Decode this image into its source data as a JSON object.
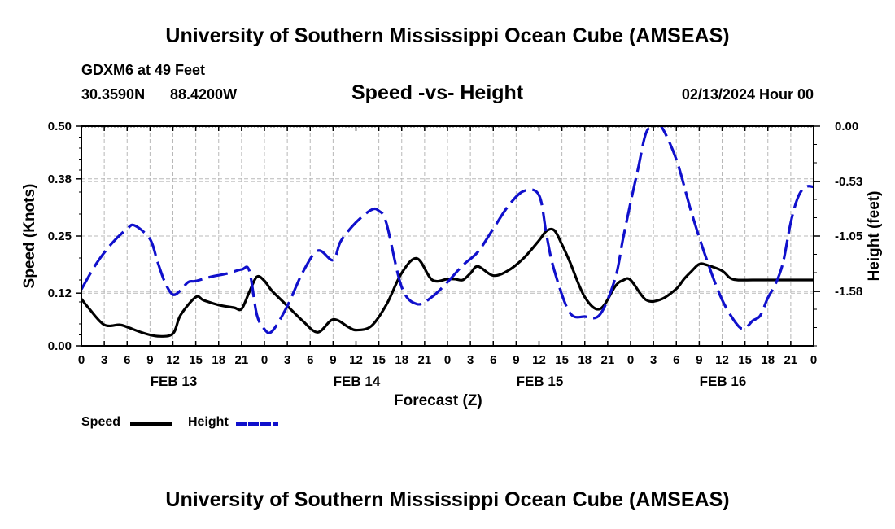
{
  "title_top": "University of Southern Mississippi Ocean Cube (AMSEAS)",
  "title_bottom": "University of Southern Mississippi Ocean Cube (AMSEAS)",
  "station": {
    "name_depth": "GDXM6 at 49 Feet",
    "lat": "30.3590N",
    "lon": "88.4200W"
  },
  "datetime": "02/13/2024 Hour 00",
  "chart_data": {
    "type": "line",
    "title": "Speed -vs- Height",
    "xlabel": "Forecast (Z)",
    "ylabel_left": "Speed (Knots)",
    "ylabel_right": "Height (feet)",
    "x_hours_range": [
      0,
      96
    ],
    "x_tick_labels": [
      "0",
      "3",
      "6",
      "9",
      "12",
      "15",
      "18",
      "21",
      "0",
      "3",
      "6",
      "9",
      "12",
      "15",
      "18",
      "21",
      "0",
      "3",
      "6",
      "9",
      "12",
      "15",
      "18",
      "21",
      "0",
      "3",
      "6",
      "9",
      "12",
      "15",
      "18",
      "21",
      "0"
    ],
    "day_labels": [
      {
        "label": "FEB 13",
        "center_hour": 12
      },
      {
        "label": "FEB 14",
        "center_hour": 36
      },
      {
        "label": "FEB 15",
        "center_hour": 60
      },
      {
        "label": "FEB 16",
        "center_hour": 84
      }
    ],
    "left_axis": {
      "range": [
        0.0,
        0.5
      ],
      "ticks": [
        "0.00",
        "0.12",
        "0.25",
        "0.38",
        "0.50"
      ]
    },
    "right_axis": {
      "range": [
        -2.1,
        0.0
      ],
      "ticks": [
        "0.00",
        "-0.53",
        "-1.05",
        "-1.58"
      ],
      "tick_values": [
        0.0,
        -0.53,
        -1.05,
        -1.58
      ]
    },
    "grid": true,
    "series": [
      {
        "name": "Speed",
        "axis": "left",
        "color": "#000000",
        "dash": "solid",
        "x": [
          0,
          1,
          3,
          5,
          6,
          8,
          10,
          12,
          13,
          15,
          16,
          18,
          20,
          21,
          22,
          23,
          24,
          25,
          27,
          29,
          31,
          33,
          35,
          36,
          38,
          40,
          42,
          44,
          46,
          48,
          49,
          50,
          51,
          52,
          54,
          56,
          58,
          60,
          61,
          62,
          63,
          64,
          66,
          68,
          70,
          71,
          72,
          74,
          76,
          78,
          79,
          80,
          81,
          82,
          84,
          85,
          86,
          88,
          90,
          92,
          93,
          94,
          95,
          96
        ],
        "values": [
          0.107,
          0.085,
          0.048,
          0.048,
          0.043,
          0.03,
          0.022,
          0.028,
          0.07,
          0.111,
          0.104,
          0.093,
          0.087,
          0.084,
          0.122,
          0.157,
          0.148,
          0.125,
          0.091,
          0.057,
          0.031,
          0.06,
          0.043,
          0.036,
          0.045,
          0.094,
          0.166,
          0.199,
          0.15,
          0.152,
          0.152,
          0.15,
          0.165,
          0.181,
          0.16,
          0.172,
          0.2,
          0.24,
          0.262,
          0.263,
          0.231,
          0.193,
          0.111,
          0.084,
          0.136,
          0.149,
          0.15,
          0.105,
          0.106,
          0.13,
          0.152,
          0.17,
          0.186,
          0.184,
          0.171,
          0.155,
          0.15,
          0.15,
          0.15,
          0.15,
          0.15,
          0.15,
          0.15,
          0.15
        ]
      },
      {
        "name": "Height",
        "axis": "right",
        "color": "#1010cc",
        "dash": "dashed",
        "x": [
          0,
          2,
          4,
          6,
          7,
          9,
          10,
          11,
          12,
          13,
          14,
          15,
          17,
          19,
          21,
          22,
          23,
          24,
          25,
          27,
          29,
          31,
          33,
          34,
          36,
          38,
          39,
          40,
          42,
          44,
          46,
          48,
          50,
          52,
          54,
          56,
          58,
          60,
          61,
          62,
          64,
          66,
          68,
          70,
          71,
          72,
          73,
          74,
          75,
          76,
          78,
          80,
          82,
          84,
          86,
          87,
          88,
          89,
          90,
          91,
          92,
          93,
          94,
          95,
          96
        ],
        "values": [
          -1.56,
          -1.31,
          -1.12,
          -0.98,
          -0.95,
          -1.08,
          -1.3,
          -1.5,
          -1.61,
          -1.57,
          -1.49,
          -1.48,
          -1.44,
          -1.41,
          -1.37,
          -1.38,
          -1.8,
          -1.94,
          -1.96,
          -1.72,
          -1.4,
          -1.19,
          -1.28,
          -1.1,
          -0.92,
          -0.8,
          -0.81,
          -0.93,
          -1.54,
          -1.7,
          -1.63,
          -1.49,
          -1.33,
          -1.2,
          -0.98,
          -0.76,
          -0.62,
          -0.66,
          -1.05,
          -1.38,
          -1.78,
          -1.82,
          -1.8,
          -1.45,
          -1.08,
          -0.73,
          -0.4,
          -0.07,
          0.0,
          0.0,
          -0.32,
          -0.83,
          -1.28,
          -1.66,
          -1.9,
          -1.93,
          -1.86,
          -1.81,
          -1.64,
          -1.51,
          -1.3,
          -0.92,
          -0.67,
          -0.58,
          -0.58
        ]
      }
    ],
    "legend": [
      {
        "label": "Speed",
        "color": "#000000"
      },
      {
        "label": "Height",
        "color": "#1010cc"
      }
    ]
  }
}
